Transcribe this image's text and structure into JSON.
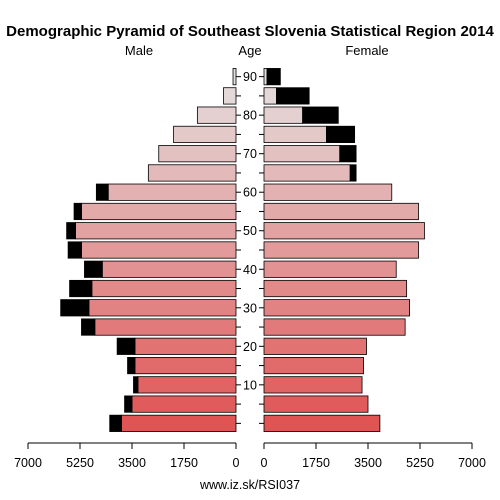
{
  "chart_data": {
    "type": "bar",
    "title": "Demographic Pyramid of Southeast Slovenia Statistical Region 2014",
    "left_label": "Male",
    "center_label": "Age",
    "right_label": "Female",
    "footer": "www.iz.sk/RSI037",
    "x_ticks": [
      "7000",
      "5250",
      "3500",
      "1750",
      "0",
      "1750",
      "3500",
      "5250",
      "7000"
    ],
    "xlim": [
      0,
      7000
    ],
    "age_tick_labels": [
      "10",
      "20",
      "30",
      "40",
      "50",
      "60",
      "70",
      "80",
      "90"
    ],
    "age_groups": [
      "0-4",
      "5-9",
      "10-14",
      "15-19",
      "20-24",
      "25-29",
      "30-34",
      "35-39",
      "40-44",
      "45-49",
      "50-54",
      "55-59",
      "60-64",
      "65-69",
      "70-74",
      "75-79",
      "80-84",
      "85-89",
      "90+"
    ],
    "series": [
      {
        "side": "left",
        "values": [
          3850,
          3500,
          3300,
          3400,
          3400,
          4750,
          4950,
          4850,
          4500,
          5200,
          5400,
          5200,
          4300,
          2950,
          2600,
          2100,
          1300,
          420,
          100
        ],
        "excess": [
          400,
          250,
          150,
          250,
          600,
          450,
          950,
          750,
          600,
          450,
          300,
          250,
          400,
          0,
          0,
          0,
          0,
          0,
          0
        ]
      },
      {
        "side": "right",
        "values": [
          3900,
          3500,
          3300,
          3350,
          3450,
          4750,
          4900,
          4800,
          4450,
          5200,
          5400,
          5200,
          4300,
          2900,
          2550,
          2100,
          1300,
          420,
          100
        ],
        "excess": [
          0,
          0,
          0,
          0,
          0,
          0,
          0,
          0,
          0,
          0,
          0,
          0,
          0,
          200,
          550,
          950,
          1200,
          1100,
          450
        ]
      }
    ],
    "colors": {
      "youngest": "#e05454",
      "oldest": "#e5e0e0",
      "excess": "#000000"
    }
  }
}
